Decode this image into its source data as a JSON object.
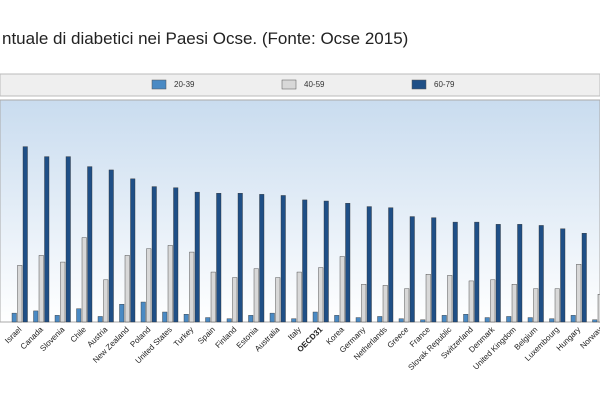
{
  "chart_data": {
    "type": "bar",
    "title": "ntuale di diabetici nei Paesi Ocse. (Fonte: Ocse 2015)",
    "categories": [
      "Israel",
      "Canada",
      "Slovenia",
      "Chile",
      "Austria",
      "New Zealand",
      "Poland",
      "United States",
      "Turkey",
      "Spain",
      "Finland",
      "Estonia",
      "Australia",
      "Italy",
      "OECD31",
      "Korea",
      "Germany",
      "Netherlands",
      "Greece",
      "France",
      "Slovak Republic",
      "Switzerland",
      "Denmark",
      "United Kingdom",
      "Belgium",
      "Luxembourg",
      "Hungary",
      "Norway"
    ],
    "series": [
      {
        "name": "20-39",
        "color": "#4a8ac4",
        "values": [
          0.8,
          1.0,
          0.6,
          1.2,
          0.5,
          1.6,
          1.8,
          0.9,
          0.7,
          0.4,
          0.3,
          0.6,
          0.8,
          0.3,
          0.9,
          0.6,
          0.4,
          0.5,
          0.3,
          0.2,
          0.6,
          0.7,
          0.4,
          0.5,
          0.4,
          0.3,
          0.6,
          0.2
        ]
      },
      {
        "name": "40-59",
        "color": "#d8d8d8",
        "values": [
          5.1,
          6.0,
          5.4,
          7.6,
          3.8,
          6.0,
          6.6,
          6.9,
          6.3,
          4.5,
          4.0,
          4.8,
          4.0,
          4.5,
          4.9,
          5.9,
          3.4,
          3.3,
          3.0,
          4.3,
          4.2,
          3.7,
          3.8,
          3.4,
          3.0,
          3.0,
          5.2,
          2.5
        ]
      },
      {
        "name": "60-79",
        "color": "#1f4f86",
        "values": [
          15.8,
          14.9,
          14.9,
          14.0,
          13.7,
          12.9,
          12.2,
          12.1,
          11.7,
          11.6,
          11.6,
          11.5,
          11.4,
          11.0,
          10.9,
          10.7,
          10.4,
          10.3,
          9.5,
          9.4,
          9.0,
          9.0,
          8.8,
          8.8,
          8.7,
          8.4,
          8.0,
          7.4
        ]
      }
    ],
    "ylim": [
      0,
      20
    ]
  }
}
